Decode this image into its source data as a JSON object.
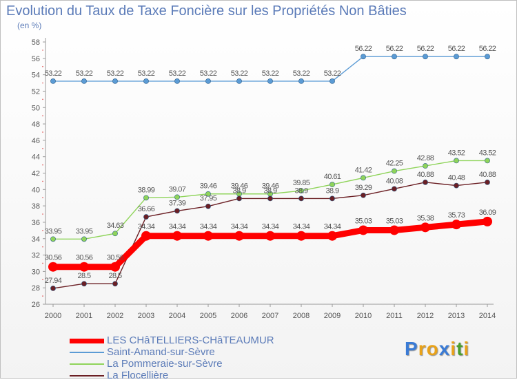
{
  "chart_data": {
    "type": "line",
    "title": "Evolution du Taux de Taxe Foncière sur les Propriétés Non Bâties",
    "ylabel": "(en %)",
    "xlabel": "",
    "ylim": [
      26,
      58
    ],
    "yticks": [
      "26",
      "28",
      "30",
      "32",
      "34",
      "36",
      "38",
      "40",
      "42",
      "44",
      "46",
      "48",
      "50",
      "52",
      "54",
      "56",
      "58"
    ],
    "categories": [
      "2000",
      "2001",
      "2002",
      "2003",
      "2004",
      "2005",
      "2006",
      "2007",
      "2008",
      "2009",
      "2010",
      "2011",
      "2012",
      "2013",
      "2014"
    ],
    "grid": false,
    "series": [
      {
        "name": "LES CHâTELLIERS-CHâTEAUMUR",
        "color": "#ff0000",
        "values": [
          30.56,
          30.56,
          30.56,
          34.34,
          34.34,
          34.34,
          34.34,
          34.34,
          34.34,
          34.34,
          35.03,
          35.03,
          35.38,
          35.73,
          36.09
        ],
        "labels": [
          "30.56",
          "30.56",
          "30.56",
          "34.34",
          "34.34",
          "34.34",
          "34.34",
          "34.34",
          "34.34",
          "34.34",
          "35.03",
          "35.03",
          "35.38",
          "35.73",
          "36.09"
        ]
      },
      {
        "name": "Saint-Amand-sur-Sèvre",
        "color": "#5b9bd5",
        "values": [
          53.22,
          53.22,
          53.22,
          53.22,
          53.22,
          53.22,
          53.22,
          53.22,
          53.22,
          53.22,
          56.22,
          56.22,
          56.22,
          56.22,
          56.22
        ],
        "labels": [
          "53.22",
          "53.22",
          "53.22",
          "53.22",
          "53.22",
          "53.22",
          "53.22",
          "53.22",
          "53.22",
          "53.22",
          "56.22",
          "56.22",
          "56.22",
          "56.22",
          "56.22"
        ]
      },
      {
        "name": "La Pommeraie-sur-Sèvre",
        "color": "#8fd45a",
        "values": [
          33.95,
          33.95,
          34.63,
          38.99,
          39.07,
          39.46,
          39.46,
          39.46,
          39.85,
          40.61,
          41.42,
          42.25,
          42.88,
          43.52,
          43.52
        ],
        "labels": [
          "33.95",
          "33.95",
          "34.63",
          "38.99",
          "39.07",
          "39.46",
          "39.46",
          "39.46",
          "39.85",
          "40.61",
          "41.42",
          "42.25",
          "42.88",
          "43.52",
          "43.52"
        ]
      },
      {
        "name": "La Flocellière",
        "color": "#6b1f24",
        "values": [
          27.94,
          28.5,
          28.5,
          36.66,
          37.39,
          37.95,
          38.9,
          38.9,
          38.9,
          38.9,
          39.29,
          40.08,
          40.88,
          40.48,
          40.88
        ],
        "labels": [
          "27.94",
          "28.5",
          "28.5",
          "36.66",
          "37.39",
          "37.95",
          "38.9",
          "38.9",
          "38.9",
          "38.9",
          "39.29",
          "40.08",
          "40.88",
          "40.48",
          "40.88"
        ]
      }
    ],
    "legend_position": "bottom-left"
  },
  "branding": {
    "logo_letters": [
      "P",
      "r",
      "o",
      "x",
      "i",
      "t",
      "i"
    ],
    "logo_colors": [
      "#3a7bd5",
      "#e8a21a",
      "#e8a21a",
      "#3a7bd5",
      "#e8a21a",
      "#4a9e2f",
      "#e8a21a"
    ]
  }
}
